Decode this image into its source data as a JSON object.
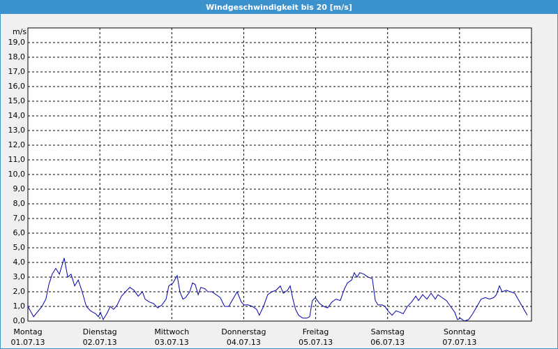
{
  "chart_data": {
    "type": "line",
    "title": "Windgeschwindigkeit bis 20 [m/s]",
    "y_label": "m/s",
    "x": [
      0,
      1.9,
      4.7,
      6.0,
      7.0,
      8.1,
      9.3,
      10.5,
      12.1,
      13.3,
      14.4,
      15.6,
      16.8,
      18.1,
      19.5,
      20.9,
      22.6,
      23.5,
      24.2,
      25.1,
      26.3,
      27.5,
      28.6,
      29.8,
      31.2,
      32.6,
      34.0,
      35.4,
      36.8,
      38.2,
      39.1,
      40.5,
      41.9,
      43.3,
      44.7,
      46.1,
      47.0,
      48.4,
      49.8,
      50.7,
      51.7,
      52.6,
      54.0,
      54.9,
      55.8,
      56.8,
      57.7,
      59.1,
      60.0,
      61.4,
      62.8,
      64.2,
      65.6,
      67.0,
      68.4,
      69.8,
      71.2,
      72.1,
      73.5,
      74.9,
      76.3,
      77.2,
      78.6,
      80.0,
      81.4,
      82.8,
      84.2,
      85.2,
      86.6,
      87.5,
      88.4,
      89.3,
      90.3,
      91.7,
      93.1,
      94.0,
      94.9,
      95.9,
      97.3,
      98.7,
      100.0,
      101.4,
      102.8,
      104.2,
      105.6,
      106.6,
      108.0,
      108.9,
      109.8,
      110.7,
      112.1,
      113.5,
      114.9,
      115.9,
      116.8,
      118.2,
      119.1,
      120.1,
      121.5,
      122.8,
      124.2,
      125.2,
      126.6,
      128.0,
      129.4,
      130.3,
      131.7,
      133.1,
      134.5,
      135.9,
      136.8,
      138.2,
      139.6,
      141.0,
      142.4,
      143.3,
      144.3,
      145.6,
      147.0,
      148.4,
      149.8,
      151.2,
      152.6,
      154.0,
      155.4,
      156.3,
      157.3,
      158.2,
      159.6,
      161.0,
      162.4,
      163.8,
      165.2,
      166.6
    ],
    "series": [
      {
        "name": "Windgeschwindigkeit",
        "color": "#0000aa",
        "values": [
          1.0,
          0.3,
          1.0,
          1.5,
          2.5,
          3.2,
          3.6,
          3.2,
          4.3,
          3.0,
          3.2,
          2.4,
          2.8,
          2.0,
          1.0,
          0.7,
          0.5,
          0.3,
          0.6,
          0.1,
          0.5,
          1.0,
          0.8,
          1.1,
          1.7,
          2.0,
          2.3,
          2.1,
          1.7,
          2.0,
          1.5,
          1.3,
          1.2,
          0.9,
          1.1,
          1.5,
          2.4,
          2.6,
          3.1,
          2.0,
          1.5,
          1.6,
          2.0,
          2.6,
          2.5,
          1.8,
          2.3,
          2.2,
          2.0,
          2.0,
          1.8,
          1.6,
          1.0,
          1.0,
          1.5,
          2.0,
          1.3,
          1.1,
          1.1,
          1.0,
          0.8,
          0.4,
          1.0,
          1.8,
          2.0,
          2.1,
          2.4,
          1.9,
          2.1,
          2.4,
          1.5,
          0.8,
          0.4,
          0.2,
          0.2,
          0.3,
          1.4,
          1.6,
          1.2,
          1.0,
          0.9,
          1.3,
          1.5,
          1.4,
          2.2,
          2.6,
          2.8,
          3.3,
          3.0,
          3.3,
          3.2,
          3.0,
          2.9,
          1.4,
          1.1,
          1.1,
          1.0,
          0.7,
          0.4,
          0.7,
          0.6,
          0.5,
          1.0,
          1.3,
          1.7,
          1.4,
          1.8,
          1.5,
          1.9,
          1.5,
          1.8,
          1.6,
          1.4,
          1.0,
          0.6,
          0.1,
          0.2,
          0.0,
          0.1,
          0.5,
          1.0,
          1.5,
          1.6,
          1.5,
          1.6,
          1.8,
          2.4,
          2.0,
          2.1,
          2.0,
          1.9,
          1.4,
          0.9,
          0.4
        ]
      }
    ],
    "xlim": [
      0,
      168
    ],
    "xticks": [
      {
        "value": 0,
        "label": "Montag"
      },
      {
        "value": 24,
        "label": "Dienstag"
      },
      {
        "value": 48,
        "label": "Mittwoch"
      },
      {
        "value": 72,
        "label": "Donnerstag"
      },
      {
        "value": 96,
        "label": "Freitag"
      },
      {
        "value": 120,
        "label": "Samstag"
      },
      {
        "value": 144,
        "label": "Sonntag"
      }
    ],
    "xtick_dates": [
      "01.07.13",
      "02.07.13",
      "03.07.13",
      "04.07.13",
      "05.07.13",
      "06.07.13",
      "07.07.13"
    ],
    "ylim": [
      0,
      20
    ],
    "yticks": [
      {
        "value": 0,
        "label": "0,0"
      },
      {
        "value": 1,
        "label": "1,0"
      },
      {
        "value": 2,
        "label": "2,0"
      },
      {
        "value": 3,
        "label": "3,0"
      },
      {
        "value": 4,
        "label": "4,0"
      },
      {
        "value": 5,
        "label": "5,0"
      },
      {
        "value": 6,
        "label": "6,0"
      },
      {
        "value": 7,
        "label": "7,0"
      },
      {
        "value": 8,
        "label": "8,0"
      },
      {
        "value": 9,
        "label": "9,0"
      },
      {
        "value": 10,
        "label": "10,0"
      },
      {
        "value": 11,
        "label": "11,0"
      },
      {
        "value": 12,
        "label": "12,0"
      },
      {
        "value": 13,
        "label": "13,0"
      },
      {
        "value": 14,
        "label": "14,0"
      },
      {
        "value": 15,
        "label": "15,0"
      },
      {
        "value": 16,
        "label": "16,0"
      },
      {
        "value": 17,
        "label": "17,0"
      },
      {
        "value": 18,
        "label": "18,0"
      },
      {
        "value": 19,
        "label": "19,0"
      }
    ],
    "grid": true
  }
}
